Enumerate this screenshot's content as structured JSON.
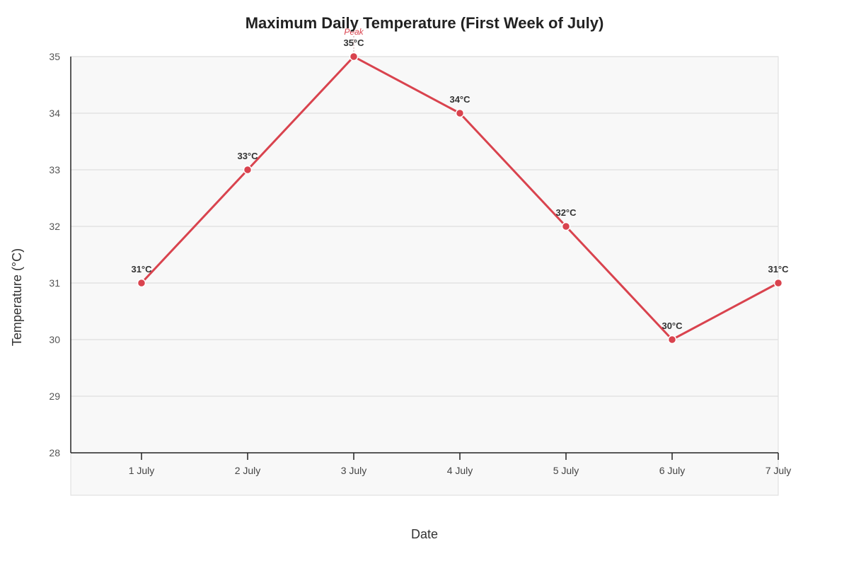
{
  "chart_data": {
    "type": "line",
    "title": "Maximum Daily Temperature (First Week of July)",
    "xlabel": "Date",
    "ylabel": "Temperature (°C)",
    "categories": [
      "1 July",
      "2 July",
      "3 July",
      "4 July",
      "5 July",
      "6 July",
      "7 July"
    ],
    "values": [
      31,
      33,
      35,
      34,
      32,
      30,
      31
    ],
    "data_labels": [
      "31°C",
      "33°C",
      "35°C",
      "34°C",
      "32°C",
      "30°C",
      "31°C"
    ],
    "ylim": [
      28,
      35
    ],
    "yticks": [
      28,
      29,
      30,
      31,
      32,
      33,
      34,
      35
    ],
    "grid": true,
    "annotations": [
      {
        "text": "Peak",
        "category": "3 July"
      }
    ],
    "colors": {
      "line": "#d9434e",
      "plot_bg": "#f8f8f8",
      "grid": "#e2e2e2",
      "axis": "#222222",
      "text": "#333333"
    }
  }
}
